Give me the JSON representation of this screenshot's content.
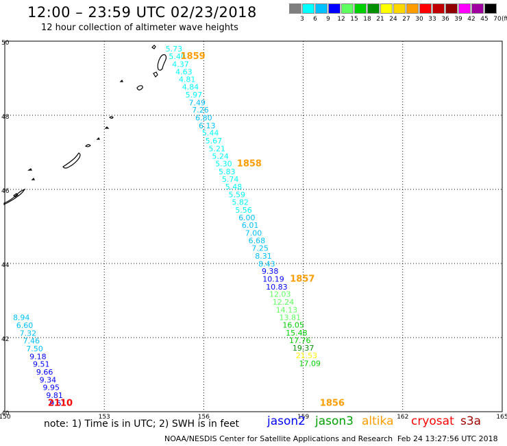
{
  "header": {
    "title": "12:00 – 23:59 UTC 02/23/2018",
    "subtitle": "12 hour collection of altimeter wave heights"
  },
  "colorbar": {
    "colors": [
      "#7f7f7f",
      "#00ffff",
      "#00c0ff",
      "#0000ff",
      "#5fff5f",
      "#00d000",
      "#009000",
      "#ffff00",
      "#ffd700",
      "#ff9c00",
      "#ff0000",
      "#c00000",
      "#900000",
      "#ff00ff",
      "#a000a0",
      "#000000"
    ],
    "labels": [
      "3",
      "6",
      "9",
      "12",
      "15",
      "18",
      "21",
      "24",
      "27",
      "30",
      "33",
      "36",
      "39",
      "42",
      "45",
      "70"
    ],
    "unit": "(ft)"
  },
  "chart_data": {
    "type": "scatter",
    "title": "12:00 – 23:59 UTC 02/23/2018",
    "subtitle": "12 hour collection of altimeter wave heights",
    "xlim": [
      150,
      165
    ],
    "ylim": [
      40,
      50
    ],
    "x_ticks": [
      "150",
      "153",
      "156",
      "159",
      "162",
      "165"
    ],
    "y_ticks": [
      "40",
      "42",
      "44",
      "46",
      "48",
      "50"
    ],
    "grid": true,
    "series": [
      {
        "name": "jason3",
        "points": [
          {
            "x": 155.1,
            "y": 49.72,
            "v": "5.73"
          },
          {
            "x": 155.2,
            "y": 49.52,
            "v": "5.40"
          },
          {
            "x": 155.3,
            "y": 49.31,
            "v": "4.37"
          },
          {
            "x": 155.4,
            "y": 49.1,
            "v": "4.63"
          },
          {
            "x": 155.5,
            "y": 48.9,
            "v": "4.81"
          },
          {
            "x": 155.6,
            "y": 48.69,
            "v": "4.84"
          },
          {
            "x": 155.7,
            "y": 48.48,
            "v": "5.97"
          },
          {
            "x": 155.8,
            "y": 48.27,
            "v": "7.49"
          },
          {
            "x": 155.9,
            "y": 48.07,
            "v": "7.26"
          },
          {
            "x": 156.0,
            "y": 47.86,
            "v": "6.80"
          },
          {
            "x": 156.1,
            "y": 47.65,
            "v": "6.13"
          },
          {
            "x": 156.2,
            "y": 47.45,
            "v": "5.44"
          },
          {
            "x": 156.3,
            "y": 47.24,
            "v": "5.67"
          },
          {
            "x": 156.4,
            "y": 47.03,
            "v": "5.21"
          },
          {
            "x": 156.5,
            "y": 46.82,
            "v": "5.24"
          },
          {
            "x": 156.6,
            "y": 46.62,
            "v": "5.30"
          },
          {
            "x": 156.7,
            "y": 46.41,
            "v": "5.83"
          },
          {
            "x": 156.8,
            "y": 46.2,
            "v": "5.74"
          },
          {
            "x": 156.9,
            "y": 46.0,
            "v": "5.48"
          },
          {
            "x": 157.0,
            "y": 45.79,
            "v": "5.59"
          },
          {
            "x": 157.1,
            "y": 45.58,
            "v": "5.82"
          },
          {
            "x": 157.2,
            "y": 45.37,
            "v": "5.56"
          },
          {
            "x": 157.3,
            "y": 45.17,
            "v": "6.00"
          },
          {
            "x": 157.4,
            "y": 44.96,
            "v": "6.01"
          },
          {
            "x": 157.5,
            "y": 44.75,
            "v": "7.00"
          },
          {
            "x": 157.6,
            "y": 44.55,
            "v": "6.68"
          },
          {
            "x": 157.7,
            "y": 44.34,
            "v": "7.25"
          },
          {
            "x": 157.8,
            "y": 44.13,
            "v": "8.31"
          },
          {
            "x": 157.9,
            "y": 43.92,
            "v": "8.43"
          },
          {
            "x": 158.0,
            "y": 43.72,
            "v": "9.38"
          },
          {
            "x": 158.1,
            "y": 43.51,
            "v": "10.19"
          },
          {
            "x": 158.2,
            "y": 43.3,
            "v": "10.83"
          },
          {
            "x": 158.3,
            "y": 43.1,
            "v": "12.03"
          },
          {
            "x": 158.4,
            "y": 42.89,
            "v": "12.24"
          },
          {
            "x": 158.5,
            "y": 42.68,
            "v": "14.13"
          },
          {
            "x": 158.6,
            "y": 42.47,
            "v": "13.81"
          },
          {
            "x": 158.7,
            "y": 42.27,
            "v": "16.05"
          },
          {
            "x": 158.8,
            "y": 42.06,
            "v": "15.48"
          },
          {
            "x": 158.9,
            "y": 41.85,
            "v": "17.76"
          },
          {
            "x": 159.0,
            "y": 41.65,
            "v": "19.37"
          },
          {
            "x": 159.1,
            "y": 41.44,
            "v": "21.53"
          },
          {
            "x": 159.2,
            "y": 41.23,
            "v": "17.09"
          }
        ]
      },
      {
        "name": "cryosat",
        "points": [
          {
            "x": 150.5,
            "y": 42.47,
            "v": "8.94"
          },
          {
            "x": 150.6,
            "y": 42.26,
            "v": "6.60"
          },
          {
            "x": 150.7,
            "y": 42.05,
            "v": "7.32"
          },
          {
            "x": 150.8,
            "y": 41.84,
            "v": "7.46"
          },
          {
            "x": 150.9,
            "y": 41.63,
            "v": "7.50"
          },
          {
            "x": 151.0,
            "y": 41.42,
            "v": "9.18"
          },
          {
            "x": 151.1,
            "y": 41.21,
            "v": "9.51"
          },
          {
            "x": 151.2,
            "y": 41.0,
            "v": "9.66"
          },
          {
            "x": 151.3,
            "y": 40.79,
            "v": "9.34"
          },
          {
            "x": 151.4,
            "y": 40.58,
            "v": "9.95"
          },
          {
            "x": 151.5,
            "y": 40.37,
            "v": "9.81"
          },
          {
            "x": 151.6,
            "y": 40.16,
            "v": "9.51"
          }
        ]
      }
    ],
    "time_labels": [
      {
        "text": "1859",
        "x": 155.3,
        "y": 49.52,
        "color": "#ff9c00"
      },
      {
        "text": "1858",
        "x": 157.0,
        "y": 46.62,
        "color": "#ff9c00"
      },
      {
        "text": "1857",
        "x": 158.6,
        "y": 43.51,
        "color": "#ff9c00"
      },
      {
        "text": "1856",
        "x": 159.5,
        "y": 40.16,
        "color": "#ff9c00"
      },
      {
        "text": "2110",
        "x": 151.3,
        "y": 40.16,
        "color": "#ff0000"
      }
    ]
  },
  "footer": {
    "note": "note:  1) Time is in UTC;  2) SWH is in feet",
    "satellites": [
      {
        "name": "jason2",
        "color": "#0000ff"
      },
      {
        "name": "jason3",
        "color": "#00a000"
      },
      {
        "name": "altika",
        "color": "#ff9c00"
      },
      {
        "name": "cryosat",
        "color": "#ff0000"
      },
      {
        "name": "s3a",
        "color": "#a00000"
      }
    ],
    "credit": "NOAA/NESDIS Center for Satellite Applications and Research",
    "timestamp": "Feb 24 13:27:56 UTC 2018"
  }
}
